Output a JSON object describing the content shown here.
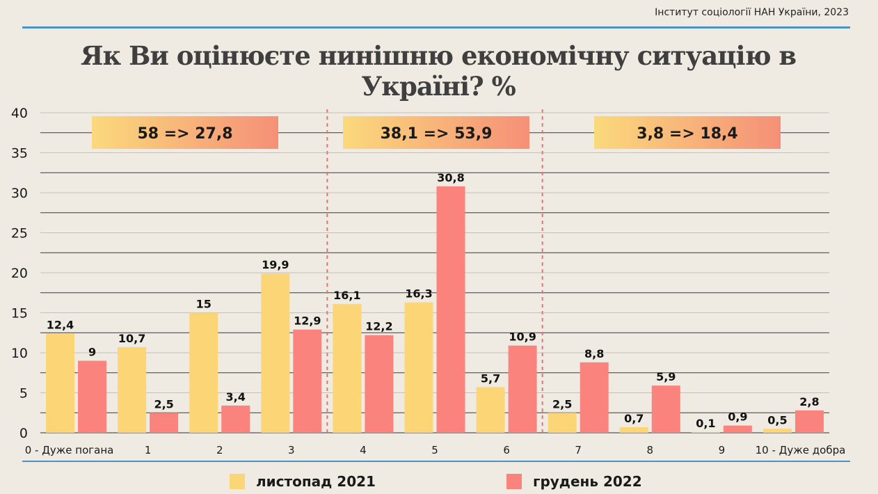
{
  "source": "Інститут соціології НАН України, 2023",
  "title": "Як Ви оцінюєте нинішню економічну ситуацію в Україні? %",
  "colors": {
    "series_2021": "#fcd576",
    "series_2022": "#fa837e",
    "box_left": "#fbd97c",
    "box_right": "#f59077",
    "divider": "#ef6f6f",
    "accent_rule": "#4c93c4"
  },
  "legend": [
    {
      "label": "листопад 2021"
    },
    {
      "label": "грудень 2022"
    }
  ],
  "summary_boxes": [
    {
      "text": "58 => 27,8"
    },
    {
      "text": "38,1 => 53,9"
    },
    {
      "text": "3,8 => 18,4"
    }
  ],
  "chart_data": {
    "type": "bar",
    "categories": [
      "0 - Дуже погана",
      "1",
      "2",
      "3",
      "4",
      "5",
      "6",
      "7",
      "8",
      "9",
      "10 - Дуже добра"
    ],
    "series": [
      {
        "name": "листопад 2021",
        "values": [
          12.4,
          10.7,
          15,
          19.9,
          16.1,
          16.3,
          5.7,
          2.5,
          0.7,
          0.1,
          0.5
        ],
        "labels": [
          "12,4",
          "10,7",
          "15",
          "19,9",
          "16,1",
          "16,3",
          "5,7",
          "2,5",
          "0,7",
          "0,1",
          "0,5"
        ]
      },
      {
        "name": "грудень 2022",
        "values": [
          9,
          2.5,
          3.4,
          12.9,
          12.2,
          30.8,
          10.9,
          8.8,
          5.9,
          0.9,
          2.8
        ],
        "labels": [
          "9",
          "2,5",
          "3,4",
          "12,9",
          "12,2",
          "30,8",
          "10,9",
          "8,8",
          "5,9",
          "0,9",
          "2,8"
        ]
      }
    ],
    "ylim": [
      0,
      40
    ],
    "yticks": [
      "0",
      "5",
      "10",
      "15",
      "20",
      "25",
      "30",
      "35",
      "40"
    ],
    "grid": true,
    "legend_position": "bottom"
  }
}
